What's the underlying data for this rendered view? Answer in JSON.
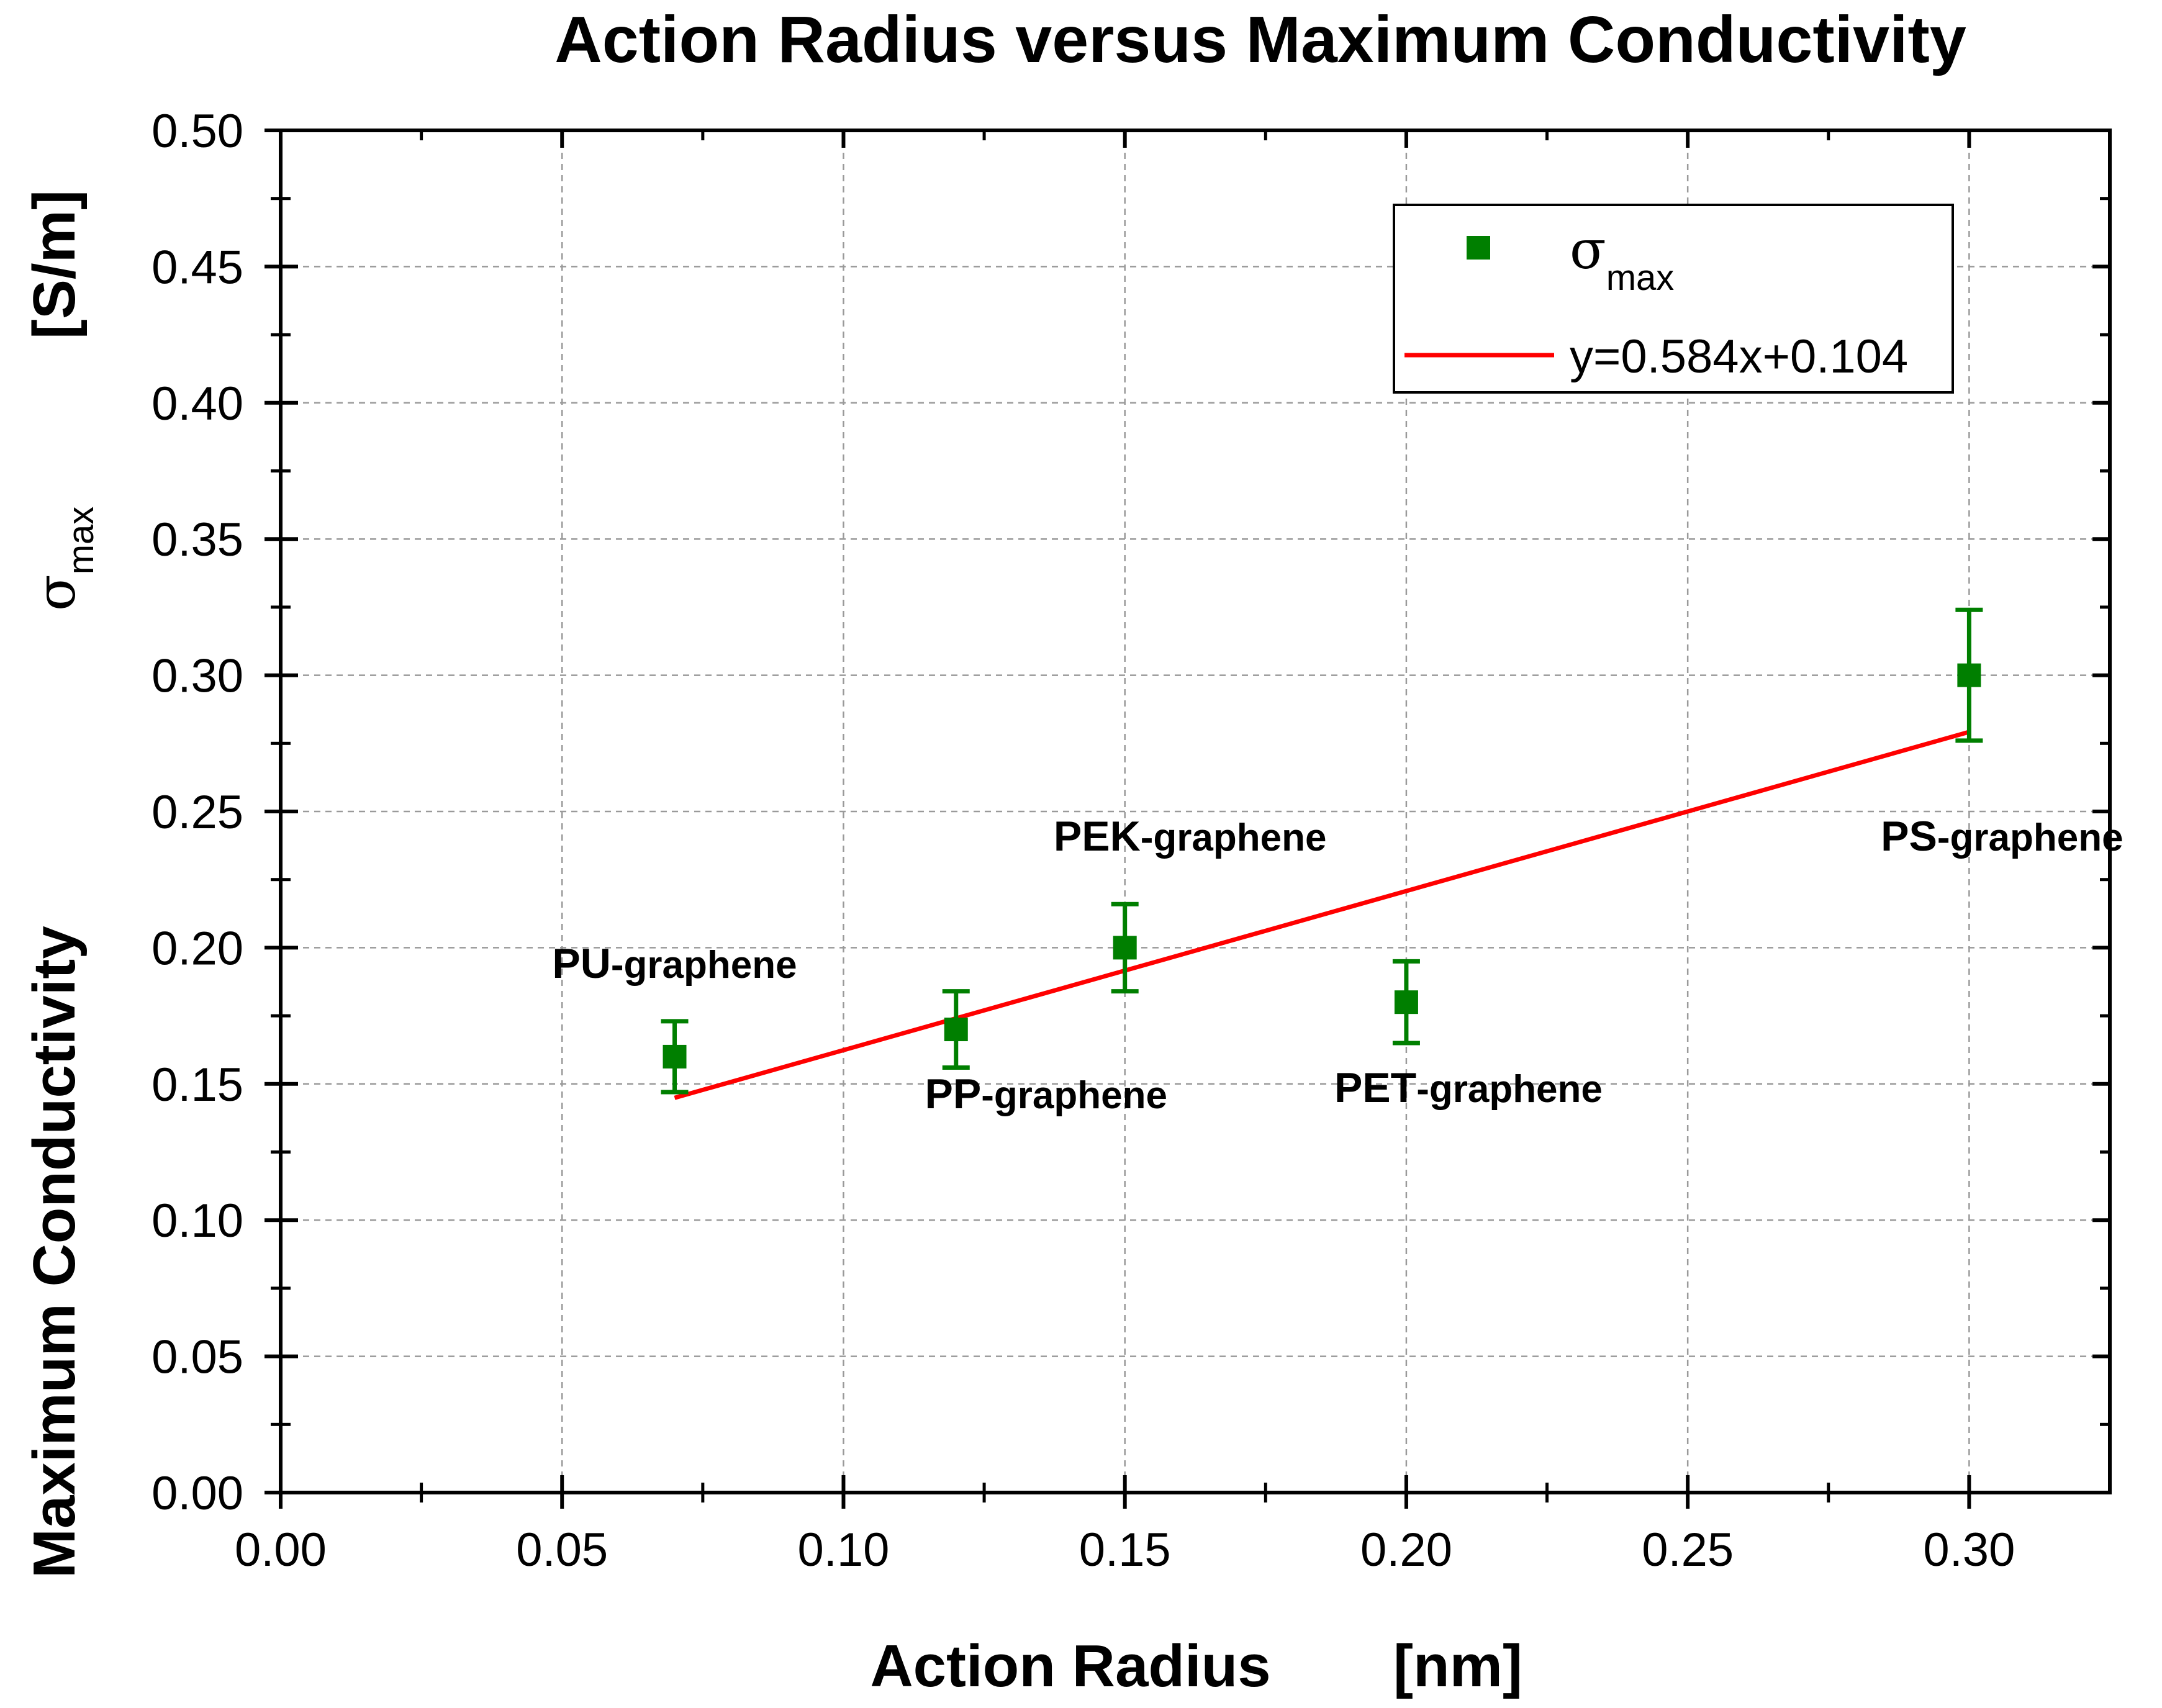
{
  "chart_data": {
    "type": "scatter",
    "title": "Action Radius versus Maximum Conductivity",
    "xlabel_main": "Action Radius",
    "xlabel_unit": "[nm]",
    "ylabel_main": "Maximum Conductivity",
    "ylabel_symbol": "σ",
    "ylabel_sub": "max",
    "ylabel_unit": "[S/m]",
    "xlim": [
      0.0,
      0.325
    ],
    "ylim": [
      0.0,
      0.5
    ],
    "xticks": [
      0.0,
      0.05,
      0.1,
      0.15,
      0.2,
      0.25,
      0.3
    ],
    "xtick_labels": [
      "0.00",
      "0.05",
      "0.10",
      "0.15",
      "0.20",
      "0.25",
      "0.30"
    ],
    "yticks": [
      0.0,
      0.05,
      0.1,
      0.15,
      0.2,
      0.25,
      0.3,
      0.35,
      0.4,
      0.45,
      0.5
    ],
    "ytick_labels": [
      "0.00",
      "0.05",
      "0.10",
      "0.15",
      "0.20",
      "0.25",
      "0.30",
      "0.35",
      "0.40",
      "0.45",
      "0.50"
    ],
    "grid": true,
    "series": [
      {
        "name": "σmax",
        "kind": "scatter",
        "color": "#007f00",
        "points": [
          {
            "x": 0.07,
            "y": 0.16,
            "err": 0.013,
            "label_prefix": "PU",
            "label_suffix": "-graphene"
          },
          {
            "x": 0.12,
            "y": 0.17,
            "err": 0.014,
            "label_prefix": "PP",
            "label_suffix": "-graphene"
          },
          {
            "x": 0.15,
            "y": 0.2,
            "err": 0.016,
            "label_prefix": "PEK",
            "label_suffix": "-graphene"
          },
          {
            "x": 0.2,
            "y": 0.18,
            "err": 0.015,
            "label_prefix": "PET",
            "label_suffix": "-graphene"
          },
          {
            "x": 0.3,
            "y": 0.3,
            "err": 0.024,
            "label_prefix": "PS",
            "label_suffix": "-graphene"
          }
        ]
      },
      {
        "name": "y=0.584x+0.104",
        "kind": "line",
        "color": "#ff0000",
        "slope": 0.584,
        "intercept": 0.104,
        "x_range": [
          0.07,
          0.3
        ]
      }
    ],
    "legend": {
      "placement": "top-right",
      "scatter_symbol": "σ",
      "scatter_sub": "max",
      "line_label": "y=0.584x+0.104"
    }
  }
}
